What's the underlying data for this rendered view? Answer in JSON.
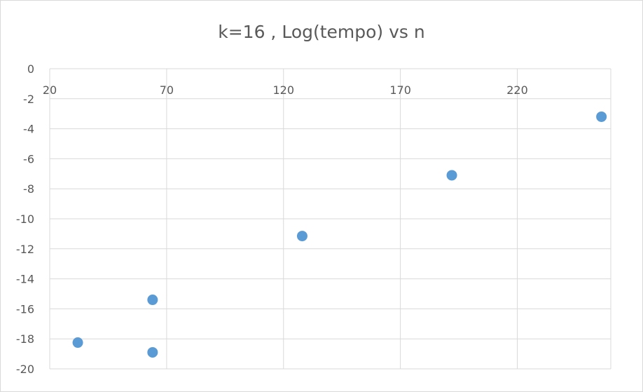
{
  "chart_data": {
    "type": "scatter",
    "title": "k=16 , Log(tempo) vs n",
    "xlabel": "",
    "ylabel": "",
    "xlim": [
      20,
      260
    ],
    "ylim": [
      -20,
      0
    ],
    "x_ticks": [
      20,
      70,
      120,
      170,
      220
    ],
    "y_ticks": [
      0,
      -2,
      -4,
      -6,
      -8,
      -10,
      -12,
      -14,
      -16,
      -18,
      -20
    ],
    "grid": true,
    "x_axis_position": "top",
    "legend": "none",
    "marker_color": "#5b9bd5",
    "gridline_color": "#d9d9d9",
    "text_color": "#595959",
    "points": [
      {
        "x": 32,
        "y": -18.25
      },
      {
        "x": 64,
        "y": -15.4
      },
      {
        "x": 64,
        "y": -18.9
      },
      {
        "x": 128,
        "y": -11.15
      },
      {
        "x": 192,
        "y": -7.1
      },
      {
        "x": 256,
        "y": -3.2
      }
    ]
  }
}
